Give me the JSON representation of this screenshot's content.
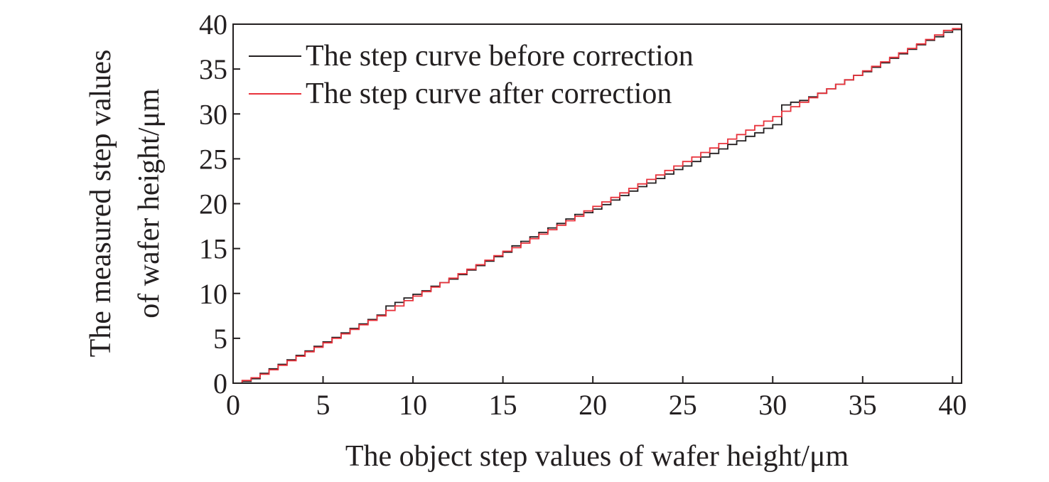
{
  "chart_data": {
    "type": "line",
    "xlabel": "The object step values of wafer height/μm",
    "ylabel": [
      "The measured step values",
      "of wafer height/μm"
    ],
    "xlim": [
      0,
      40.5
    ],
    "ylim": [
      0,
      40
    ],
    "xticks": [
      0,
      5,
      10,
      15,
      20,
      25,
      30,
      35,
      40
    ],
    "yticks": [
      0,
      5,
      10,
      15,
      20,
      25,
      30,
      35,
      40
    ],
    "grid": false,
    "legend_position": "top-left",
    "series": [
      {
        "name": "The step curve before correction",
        "color": "#231f20",
        "style": "step",
        "points": [
          [
            0.5,
            0.2
          ],
          [
            1,
            0.5
          ],
          [
            1.5,
            1.1
          ],
          [
            2,
            1.6
          ],
          [
            2.5,
            2.1
          ],
          [
            3,
            2.6
          ],
          [
            3.5,
            3.1
          ],
          [
            4,
            3.6
          ],
          [
            4.5,
            4.1
          ],
          [
            5,
            4.6
          ],
          [
            5.5,
            5.1
          ],
          [
            6,
            5.6
          ],
          [
            6.5,
            6.1
          ],
          [
            7,
            6.6
          ],
          [
            7.5,
            7.1
          ],
          [
            8,
            7.6
          ],
          [
            8.5,
            8.6
          ],
          [
            9,
            9.0
          ],
          [
            9.5,
            9.5
          ],
          [
            10,
            9.9
          ],
          [
            10.5,
            10.3
          ],
          [
            11,
            10.8
          ],
          [
            11.5,
            11.2
          ],
          [
            12,
            11.6
          ],
          [
            12.5,
            12.1
          ],
          [
            13,
            12.6
          ],
          [
            13.5,
            13.1
          ],
          [
            14,
            13.6
          ],
          [
            14.5,
            14.1
          ],
          [
            15,
            14.6
          ],
          [
            15.5,
            15.3
          ],
          [
            16,
            15.8
          ],
          [
            16.5,
            16.3
          ],
          [
            17,
            16.8
          ],
          [
            17.5,
            17.3
          ],
          [
            18,
            17.8
          ],
          [
            18.5,
            18.3
          ],
          [
            19,
            18.8
          ],
          [
            19.5,
            19.0
          ],
          [
            20,
            19.4
          ],
          [
            20.5,
            19.9
          ],
          [
            21,
            20.4
          ],
          [
            21.5,
            20.9
          ],
          [
            22,
            21.4
          ],
          [
            22.5,
            21.9
          ],
          [
            23,
            22.3
          ],
          [
            23.5,
            22.8
          ],
          [
            24,
            23.3
          ],
          [
            24.5,
            23.8
          ],
          [
            25,
            24.2
          ],
          [
            25.5,
            24.7
          ],
          [
            26,
            25.2
          ],
          [
            26.5,
            25.6
          ],
          [
            27,
            26.1
          ],
          [
            27.5,
            26.6
          ],
          [
            28,
            27.0
          ],
          [
            28.5,
            27.5
          ],
          [
            29,
            27.9
          ],
          [
            29.5,
            28.4
          ],
          [
            30,
            28.8
          ],
          [
            30.5,
            31.0
          ],
          [
            31,
            31.3
          ],
          [
            31.5,
            31.5
          ],
          [
            32,
            31.9
          ],
          [
            32.5,
            32.3
          ],
          [
            33,
            32.8
          ],
          [
            33.5,
            33.3
          ],
          [
            34,
            33.8
          ],
          [
            34.5,
            34.3
          ],
          [
            35,
            34.7
          ],
          [
            35.5,
            35.2
          ],
          [
            36,
            35.7
          ],
          [
            36.5,
            36.2
          ],
          [
            37,
            36.7
          ],
          [
            37.5,
            37.2
          ],
          [
            38,
            37.7
          ],
          [
            38.5,
            38.2
          ],
          [
            39,
            38.6
          ],
          [
            39.5,
            39.1
          ],
          [
            40,
            39.4
          ],
          [
            40.5,
            39.6
          ]
        ]
      },
      {
        "name": "The step curve after correction",
        "color": "#e8333c",
        "style": "step",
        "points": [
          [
            0.5,
            0.3
          ],
          [
            1,
            0.6
          ],
          [
            1.5,
            1.0
          ],
          [
            2,
            1.5
          ],
          [
            2.5,
            2.0
          ],
          [
            3,
            2.5
          ],
          [
            3.5,
            3.0
          ],
          [
            4,
            3.5
          ],
          [
            4.5,
            4.0
          ],
          [
            5,
            4.5
          ],
          [
            5.5,
            5.0
          ],
          [
            6,
            5.5
          ],
          [
            6.5,
            6.0
          ],
          [
            7,
            6.5
          ],
          [
            7.5,
            7.0
          ],
          [
            8,
            7.5
          ],
          [
            8.5,
            8.1
          ],
          [
            9,
            8.6
          ],
          [
            9.5,
            9.2
          ],
          [
            10,
            9.7
          ],
          [
            10.5,
            10.2
          ],
          [
            11,
            10.7
          ],
          [
            11.5,
            11.2
          ],
          [
            12,
            11.7
          ],
          [
            12.5,
            12.2
          ],
          [
            13,
            12.7
          ],
          [
            13.5,
            13.2
          ],
          [
            14,
            13.7
          ],
          [
            14.5,
            14.2
          ],
          [
            15,
            14.7
          ],
          [
            15.5,
            15.1
          ],
          [
            16,
            15.6
          ],
          [
            16.5,
            16.1
          ],
          [
            17,
            16.6
          ],
          [
            17.5,
            17.1
          ],
          [
            18,
            17.6
          ],
          [
            18.5,
            18.1
          ],
          [
            19,
            18.6
          ],
          [
            19.5,
            19.2
          ],
          [
            20,
            19.7
          ],
          [
            20.5,
            20.2
          ],
          [
            21,
            20.7
          ],
          [
            21.5,
            21.2
          ],
          [
            22,
            21.7
          ],
          [
            22.5,
            22.2
          ],
          [
            23,
            22.7
          ],
          [
            23.5,
            23.2
          ],
          [
            24,
            23.7
          ],
          [
            24.5,
            24.2
          ],
          [
            25,
            24.7
          ],
          [
            25.5,
            25.2
          ],
          [
            26,
            25.7
          ],
          [
            26.5,
            26.2
          ],
          [
            27,
            26.7
          ],
          [
            27.5,
            27.2
          ],
          [
            28,
            27.7
          ],
          [
            28.5,
            28.2
          ],
          [
            29,
            28.7
          ],
          [
            29.5,
            29.2
          ],
          [
            30,
            29.7
          ],
          [
            30.5,
            30.3
          ],
          [
            31,
            30.8
          ],
          [
            31.5,
            31.3
          ],
          [
            32,
            31.8
          ],
          [
            32.5,
            32.3
          ],
          [
            33,
            32.8
          ],
          [
            33.5,
            33.3
          ],
          [
            34,
            33.8
          ],
          [
            34.5,
            34.3
          ],
          [
            35,
            34.8
          ],
          [
            35.5,
            35.3
          ],
          [
            36,
            35.8
          ],
          [
            36.5,
            36.3
          ],
          [
            37,
            36.8
          ],
          [
            37.5,
            37.3
          ],
          [
            38,
            37.8
          ],
          [
            38.5,
            38.3
          ],
          [
            39,
            38.8
          ],
          [
            39.5,
            39.3
          ],
          [
            40,
            39.5
          ],
          [
            40.5,
            39.6
          ]
        ]
      }
    ]
  }
}
